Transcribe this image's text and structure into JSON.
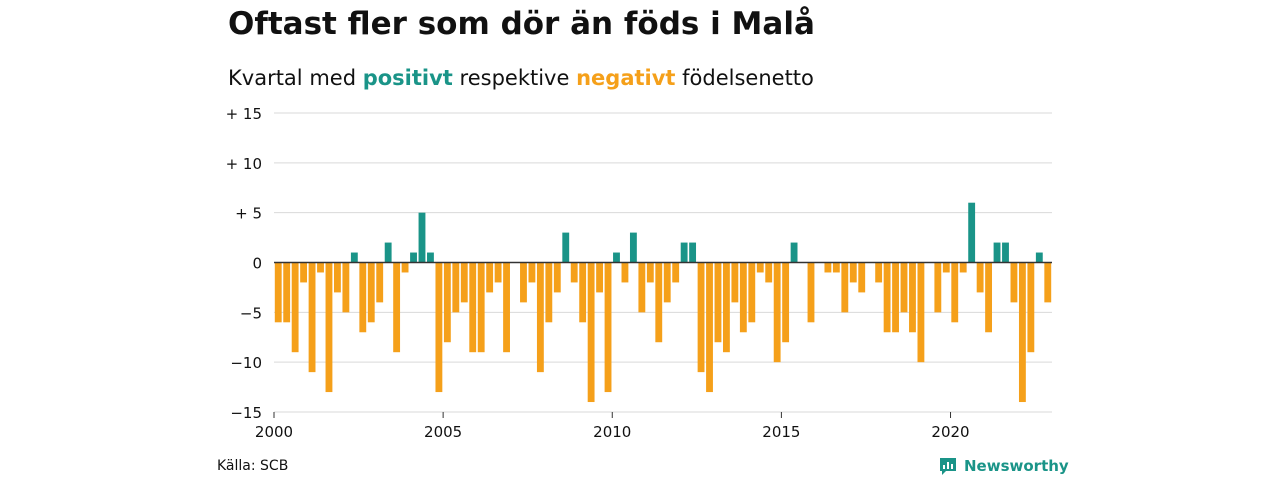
{
  "header": {
    "title": "Oftast fler som dör än föds i Malå",
    "subtitle_prefix": "Kvartal med",
    "subtitle_positive": "positivt",
    "subtitle_middle": "respektive",
    "subtitle_negative": "negativt",
    "subtitle_suffix": "födelsenetto"
  },
  "footer": {
    "source": "Källa: SCB",
    "brand": "Newsworthy",
    "brand_icon": "newsworthy-logo-icon"
  },
  "colors": {
    "positive": "#1a9488",
    "negative": "#f5a01a",
    "grid": "#d9d9d9",
    "zero_line": "#333333"
  },
  "chart_data": {
    "type": "bar",
    "title": "Oftast fler som dör än föds i Malå",
    "subtitle": "Kvartal med positivt respektive negativt födelsenetto",
    "xlabel": "",
    "ylabel": "",
    "ylim": [
      -15,
      15
    ],
    "xlim": [
      2000,
      2023
    ],
    "grid": true,
    "y_ticks": [
      15,
      10,
      5,
      0,
      -5,
      -10,
      -15
    ],
    "y_tick_labels": [
      "+ 15",
      "+ 10",
      "+  5",
      "0",
      "−5",
      "−10",
      "−15"
    ],
    "x_ticks": [
      2000,
      2005,
      2010,
      2015,
      2020
    ],
    "x_tick_labels": [
      "2000",
      "2005",
      "2010",
      "2015",
      "2020"
    ],
    "x_start": 2000,
    "x_step": 0.25,
    "values": [
      -6,
      -6,
      -9,
      -2,
      -11,
      -1,
      -13,
      -3,
      -5,
      1,
      -7,
      -6,
      -4,
      2,
      -9,
      -1,
      1,
      5,
      1,
      -13,
      -8,
      -5,
      -4,
      -9,
      -9,
      -3,
      -2,
      -9,
      0,
      -4,
      -2,
      -11,
      -6,
      -3,
      3,
      -2,
      -6,
      -14,
      -3,
      -13,
      1,
      -2,
      3,
      -5,
      -2,
      -8,
      -4,
      -2,
      2,
      2,
      -11,
      -13,
      -8,
      -9,
      -4,
      -7,
      -6,
      -1,
      -2,
      -10,
      -8,
      2,
      0,
      -6,
      0,
      -1,
      -1,
      -5,
      -2,
      -3,
      0,
      -2,
      -7,
      -7,
      -5,
      -7,
      -10,
      0,
      -5,
      -1,
      -6,
      -1,
      6,
      -3,
      -7,
      2,
      2,
      -4,
      -14,
      -9,
      1,
      -4
    ]
  }
}
